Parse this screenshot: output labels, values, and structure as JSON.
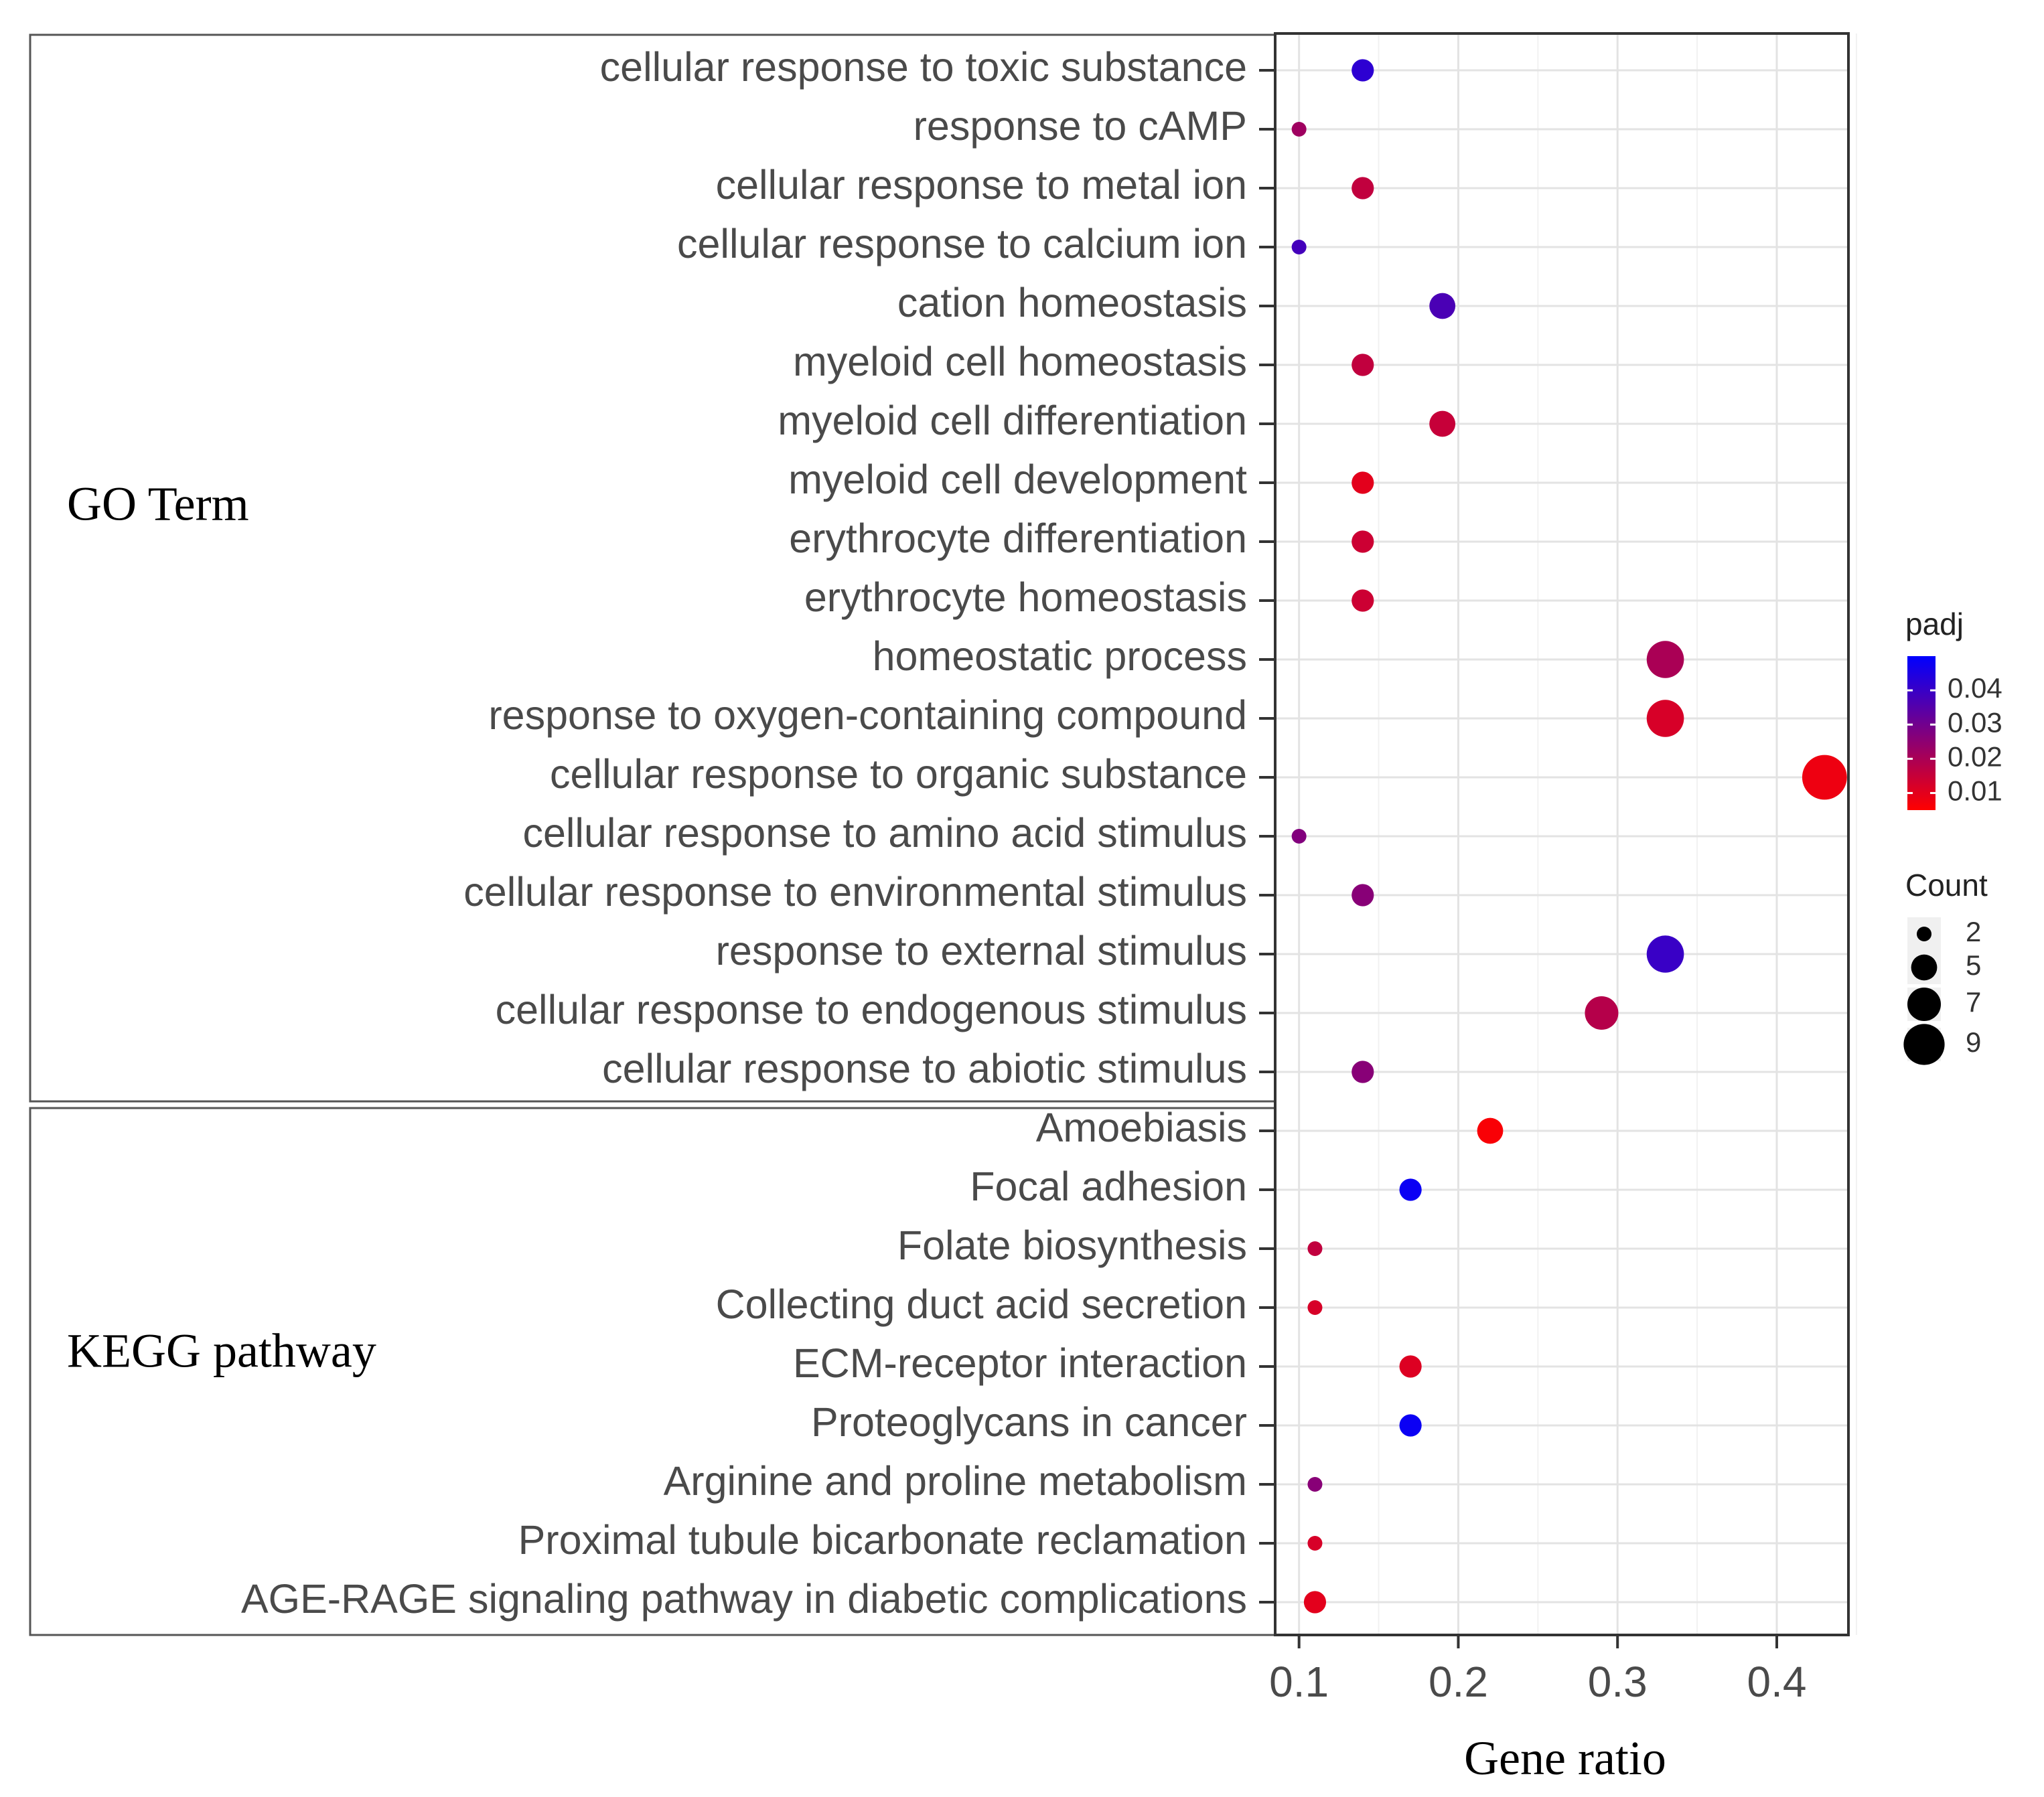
{
  "chart_data": {
    "type": "scatter",
    "title": "",
    "xlabel": "Gene ratio",
    "ylabel": "",
    "xlim": [
      0.085,
      0.445
    ],
    "xticks": [
      0.1,
      0.2,
      0.3,
      0.4
    ],
    "xtick_labels": [
      "0.1",
      "0.2",
      "0.3",
      "0.4"
    ],
    "grid": true,
    "groups": [
      {
        "name": "GO Term",
        "terms": [
          {
            "term": "cellular response to toxic substance",
            "gene_ratio": 0.14,
            "count": 4,
            "padj": 0.042
          },
          {
            "term": "response to cAMP",
            "gene_ratio": 0.1,
            "count": 2,
            "padj": 0.022
          },
          {
            "term": "cellular response to metal ion",
            "gene_ratio": 0.14,
            "count": 4,
            "padj": 0.016
          },
          {
            "term": "cellular response to calcium ion",
            "gene_ratio": 0.1,
            "count": 2,
            "padj": 0.038
          },
          {
            "term": "cation homeostasis",
            "gene_ratio": 0.19,
            "count": 5,
            "padj": 0.037
          },
          {
            "term": "myeloid cell homeostasis",
            "gene_ratio": 0.14,
            "count": 4,
            "padj": 0.016
          },
          {
            "term": "myeloid cell differentiation",
            "gene_ratio": 0.19,
            "count": 5,
            "padj": 0.015
          },
          {
            "term": "myeloid cell development",
            "gene_ratio": 0.14,
            "count": 4,
            "padj": 0.01
          },
          {
            "term": "erythrocyte differentiation",
            "gene_ratio": 0.14,
            "count": 4,
            "padj": 0.014
          },
          {
            "term": "erythrocyte homeostasis",
            "gene_ratio": 0.14,
            "count": 4,
            "padj": 0.014
          },
          {
            "term": "homeostatic process",
            "gene_ratio": 0.33,
            "count": 8,
            "padj": 0.02
          },
          {
            "term": "response to oxygen-containing compound",
            "gene_ratio": 0.33,
            "count": 8,
            "padj": 0.012
          },
          {
            "term": "cellular response to organic substance",
            "gene_ratio": 0.43,
            "count": 10,
            "padj": 0.008
          },
          {
            "term": "cellular response to amino acid stimulus",
            "gene_ratio": 0.1,
            "count": 2,
            "padj": 0.027
          },
          {
            "term": "cellular response to environmental stimulus",
            "gene_ratio": 0.14,
            "count": 4,
            "padj": 0.026
          },
          {
            "term": "response to external stimulus",
            "gene_ratio": 0.33,
            "count": 8,
            "padj": 0.04
          },
          {
            "term": "cellular response to endogenous stimulus",
            "gene_ratio": 0.29,
            "count": 7,
            "padj": 0.018
          },
          {
            "term": "cellular response to abiotic stimulus",
            "gene_ratio": 0.14,
            "count": 4,
            "padj": 0.026
          }
        ]
      },
      {
        "name": "KEGG pathway",
        "terms": [
          {
            "term": "Amoebiasis",
            "gene_ratio": 0.22,
            "count": 5,
            "padj": 0.006
          },
          {
            "term": "Focal adhesion",
            "gene_ratio": 0.17,
            "count": 4,
            "padj": 0.048
          },
          {
            "term": "Folate biosynthesis",
            "gene_ratio": 0.11,
            "count": 2,
            "padj": 0.016
          },
          {
            "term": "Collecting duct acid secretion",
            "gene_ratio": 0.11,
            "count": 2,
            "padj": 0.012
          },
          {
            "term": "ECM-receptor interaction",
            "gene_ratio": 0.17,
            "count": 4,
            "padj": 0.011
          },
          {
            "term": "Proteoglycans in cancer",
            "gene_ratio": 0.17,
            "count": 4,
            "padj": 0.048
          },
          {
            "term": "Arginine and proline metabolism",
            "gene_ratio": 0.11,
            "count": 2,
            "padj": 0.026
          },
          {
            "term": "Proximal tubule bicarbonate reclamation",
            "gene_ratio": 0.11,
            "count": 2,
            "padj": 0.012
          },
          {
            "term": "AGE-RAGE signaling pathway in diabetic complications",
            "gene_ratio": 0.11,
            "count": 4,
            "padj": 0.01
          }
        ]
      }
    ],
    "legend": {
      "color": {
        "title": "padj",
        "range": [
          0.005,
          0.05
        ],
        "ticks": [
          "0.04",
          "0.03",
          "0.02",
          "0.01"
        ],
        "tick_values": [
          0.04,
          0.03,
          0.02,
          0.01
        ],
        "low_color": "#ff0000",
        "high_color": "#0000ff"
      },
      "size": {
        "title": "Count",
        "labels": [
          "2",
          "5",
          "7",
          "9"
        ],
        "values": [
          2,
          5,
          7,
          9
        ]
      }
    }
  }
}
